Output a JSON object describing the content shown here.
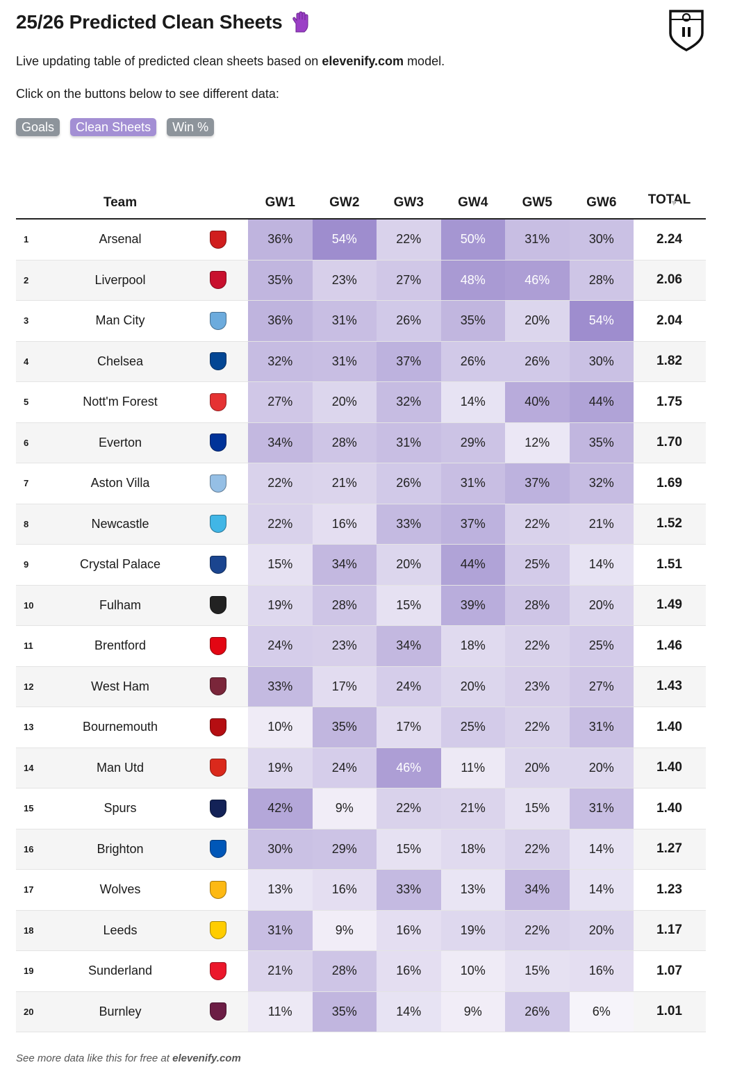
{
  "title": "25/26 Predicted Clean Sheets",
  "subtitle_prefix": "Live updating table of predicted clean sheets based on ",
  "subtitle_brand": "elevenify.com",
  "subtitle_suffix": " model.",
  "instruction": "Click on the buttons below to see different data:",
  "buttons": [
    {
      "label": "Goals",
      "active": false
    },
    {
      "label": "Clean Sheets",
      "active": true
    },
    {
      "label": "Win %",
      "active": false
    }
  ],
  "columns": {
    "team": "Team",
    "gw": [
      "GW1",
      "GW2",
      "GW3",
      "GW4",
      "GW5",
      "GW6"
    ],
    "total": "TOTAL",
    "sort_arrow": "▼"
  },
  "rows": [
    {
      "rank": "1",
      "team": "Arsenal",
      "crest_color": "#d01e1e",
      "gw": [
        "36%",
        "54%",
        "22%",
        "50%",
        "31%",
        "30%"
      ],
      "total": "2.24"
    },
    {
      "rank": "2",
      "team": "Liverpool",
      "crest_color": "#c8102e",
      "gw": [
        "35%",
        "23%",
        "27%",
        "48%",
        "46%",
        "28%"
      ],
      "total": "2.06"
    },
    {
      "rank": "3",
      "team": "Man City",
      "crest_color": "#6cabdd",
      "gw": [
        "36%",
        "31%",
        "26%",
        "35%",
        "20%",
        "54%"
      ],
      "total": "2.04"
    },
    {
      "rank": "4",
      "team": "Chelsea",
      "crest_color": "#034694",
      "gw": [
        "32%",
        "31%",
        "37%",
        "26%",
        "26%",
        "30%"
      ],
      "total": "1.82"
    },
    {
      "rank": "5",
      "team": "Nott'm Forest",
      "crest_color": "#e53233",
      "gw": [
        "27%",
        "20%",
        "32%",
        "14%",
        "40%",
        "44%"
      ],
      "total": "1.75"
    },
    {
      "rank": "6",
      "team": "Everton",
      "crest_color": "#003399",
      "gw": [
        "34%",
        "28%",
        "31%",
        "29%",
        "12%",
        "35%"
      ],
      "total": "1.70"
    },
    {
      "rank": "7",
      "team": "Aston Villa",
      "crest_color": "#95bfe5",
      "gw": [
        "22%",
        "21%",
        "26%",
        "31%",
        "37%",
        "32%"
      ],
      "total": "1.69"
    },
    {
      "rank": "8",
      "team": "Newcastle",
      "crest_color": "#41b6e6",
      "gw": [
        "22%",
        "16%",
        "33%",
        "37%",
        "22%",
        "21%"
      ],
      "total": "1.52"
    },
    {
      "rank": "9",
      "team": "Crystal Palace",
      "crest_color": "#1b458f",
      "gw": [
        "15%",
        "34%",
        "20%",
        "44%",
        "25%",
        "14%"
      ],
      "total": "1.51"
    },
    {
      "rank": "10",
      "team": "Fulham",
      "crest_color": "#222222",
      "gw": [
        "19%",
        "28%",
        "15%",
        "39%",
        "28%",
        "20%"
      ],
      "total": "1.49"
    },
    {
      "rank": "11",
      "team": "Brentford",
      "crest_color": "#e30613",
      "gw": [
        "24%",
        "23%",
        "34%",
        "18%",
        "22%",
        "25%"
      ],
      "total": "1.46"
    },
    {
      "rank": "12",
      "team": "West Ham",
      "crest_color": "#7a263a",
      "gw": [
        "33%",
        "17%",
        "24%",
        "20%",
        "23%",
        "27%"
      ],
      "total": "1.43"
    },
    {
      "rank": "13",
      "team": "Bournemouth",
      "crest_color": "#b50e12",
      "gw": [
        "10%",
        "35%",
        "17%",
        "25%",
        "22%",
        "31%"
      ],
      "total": "1.40"
    },
    {
      "rank": "14",
      "team": "Man Utd",
      "crest_color": "#da291c",
      "gw": [
        "19%",
        "24%",
        "46%",
        "11%",
        "20%",
        "20%"
      ],
      "total": "1.40"
    },
    {
      "rank": "15",
      "team": "Spurs",
      "crest_color": "#132257",
      "gw": [
        "42%",
        "9%",
        "22%",
        "21%",
        "15%",
        "31%"
      ],
      "total": "1.40"
    },
    {
      "rank": "16",
      "team": "Brighton",
      "crest_color": "#0057b8",
      "gw": [
        "30%",
        "29%",
        "15%",
        "18%",
        "22%",
        "14%"
      ],
      "total": "1.27"
    },
    {
      "rank": "17",
      "team": "Wolves",
      "crest_color": "#fdb913",
      "gw": [
        "13%",
        "16%",
        "33%",
        "13%",
        "34%",
        "14%"
      ],
      "total": "1.23"
    },
    {
      "rank": "18",
      "team": "Leeds",
      "crest_color": "#ffcd00",
      "gw": [
        "31%",
        "9%",
        "16%",
        "19%",
        "22%",
        "20%"
      ],
      "total": "1.17"
    },
    {
      "rank": "19",
      "team": "Sunderland",
      "crest_color": "#eb172b",
      "gw": [
        "21%",
        "28%",
        "16%",
        "10%",
        "15%",
        "16%"
      ],
      "total": "1.07"
    },
    {
      "rank": "20",
      "team": "Burnley",
      "crest_color": "#6c1d45",
      "gw": [
        "11%",
        "35%",
        "14%",
        "9%",
        "26%",
        "6%"
      ],
      "total": "1.01"
    }
  ],
  "footer_prefix": "See more data like this for free at ",
  "footer_brand": "elevenify.com"
}
